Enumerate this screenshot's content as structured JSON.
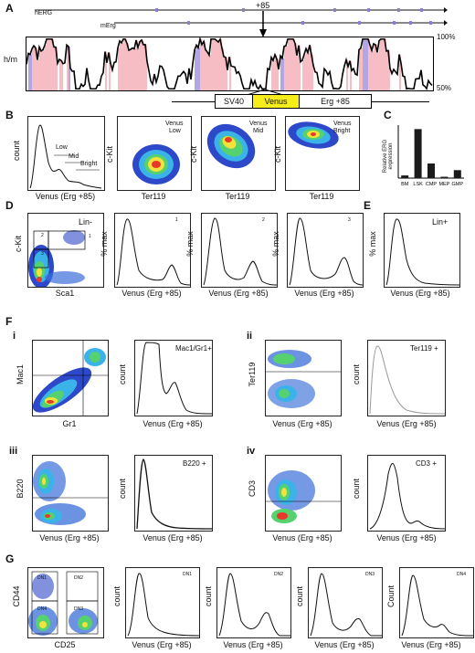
{
  "panels": {
    "A": "A",
    "B": "B",
    "C": "C",
    "D": "D",
    "E": "E",
    "F": "F",
    "G": "G"
  },
  "panelA": {
    "hERG": "hERG",
    "mErg": "mErg",
    "peak": "+85",
    "y_axis": "h/m",
    "ytick_top": "100%",
    "ytick_bottom": "50%",
    "construct": {
      "sv40": "SV40",
      "venus": "Venus",
      "erg": "Erg +85"
    },
    "colors": {
      "venus": "#f5ee1a",
      "exon": "#9a88d8",
      "conserved": "#f3a7b1"
    }
  },
  "panelB": {
    "hist": {
      "ylabel": "count",
      "xlabel": "Venus (Erg +85)",
      "gates": {
        "low": "Low",
        "mid": "Mid",
        "bright": "Bright"
      }
    },
    "plots": [
      {
        "ylabel": "c-Kit",
        "xlabel": "Ter119",
        "tag1": "Venus",
        "tag2": "Low"
      },
      {
        "ylabel": "c-Kit",
        "xlabel": "Ter119",
        "tag1": "Venus",
        "tag2": "Mid"
      },
      {
        "ylabel": "c-Kit",
        "xlabel": "Ter119",
        "tag1": "Venus",
        "tag2": "Bright"
      }
    ]
  },
  "chart_data": [
    {
      "type": "bar",
      "title": "",
      "ylabel": "Relative ERG expression",
      "categories": [
        "BM",
        "LSK",
        "CMP",
        "MEP",
        "GMP"
      ],
      "values": [
        0.2,
        3.7,
        1.1,
        0.1,
        0.6
      ]
    }
  ],
  "panelD": {
    "dot": {
      "ylabel": "c-Kit",
      "xlabel": "Sca1",
      "tag": "Lin-",
      "g1": "1",
      "g2": "2",
      "g3": "3"
    },
    "hists": [
      {
        "ylabel": "% max",
        "xlabel": "Venus (Erg +85)",
        "tag": "1"
      },
      {
        "ylabel": "% max",
        "xlabel": "Venus (Erg +85)",
        "tag": "2"
      },
      {
        "ylabel": "% max",
        "xlabel": "Venus (Erg +85)",
        "tag": "3"
      }
    ]
  },
  "panelE": {
    "ylabel": "% max",
    "xlabel": "Venus (Erg +85)",
    "tag": "Lin+"
  },
  "panelF": {
    "i": {
      "roman": "i",
      "dotY": "Mac1",
      "dotX": "Gr1",
      "histY": "count",
      "histX": "Venus (Erg +85)",
      "tag": "Mac1/Gr1+"
    },
    "ii": {
      "roman": "ii",
      "dotY": "Ter119",
      "dotX": "Venus (Erg +85)",
      "histY": "count",
      "histX": "Venus (Erg +85)",
      "tag": "Ter119 +"
    },
    "iii": {
      "roman": "iii",
      "dotY": "B220",
      "dotX": "Venus (Erg +85)",
      "histY": "count",
      "histX": "Venus (Erg +85)",
      "tag": "B220 +"
    },
    "iv": {
      "roman": "iv",
      "dotY": "CD3",
      "dotX": "Venus (Erg +85)",
      "histY": "count",
      "histX": "Venus (Erg +85)",
      "tag": "CD3 +"
    }
  },
  "panelG": {
    "dot": {
      "ylabel": "CD44",
      "xlabel": "CD25",
      "q1": "DN1",
      "q2": "DN2",
      "q3": "DN3",
      "q4": "DN4"
    },
    "hists": [
      {
        "ylabel": "count",
        "xlabel": "Venus (Erg +85)",
        "tag": "DN1"
      },
      {
        "ylabel": "count",
        "xlabel": "Venus (Erg +85)",
        "tag": "DN2"
      },
      {
        "ylabel": "count",
        "xlabel": "Venus (Erg +85)",
        "tag": "DN3"
      },
      {
        "ylabel": "Count",
        "xlabel": "Venus (Erg +85)",
        "tag": "DN4"
      }
    ]
  }
}
